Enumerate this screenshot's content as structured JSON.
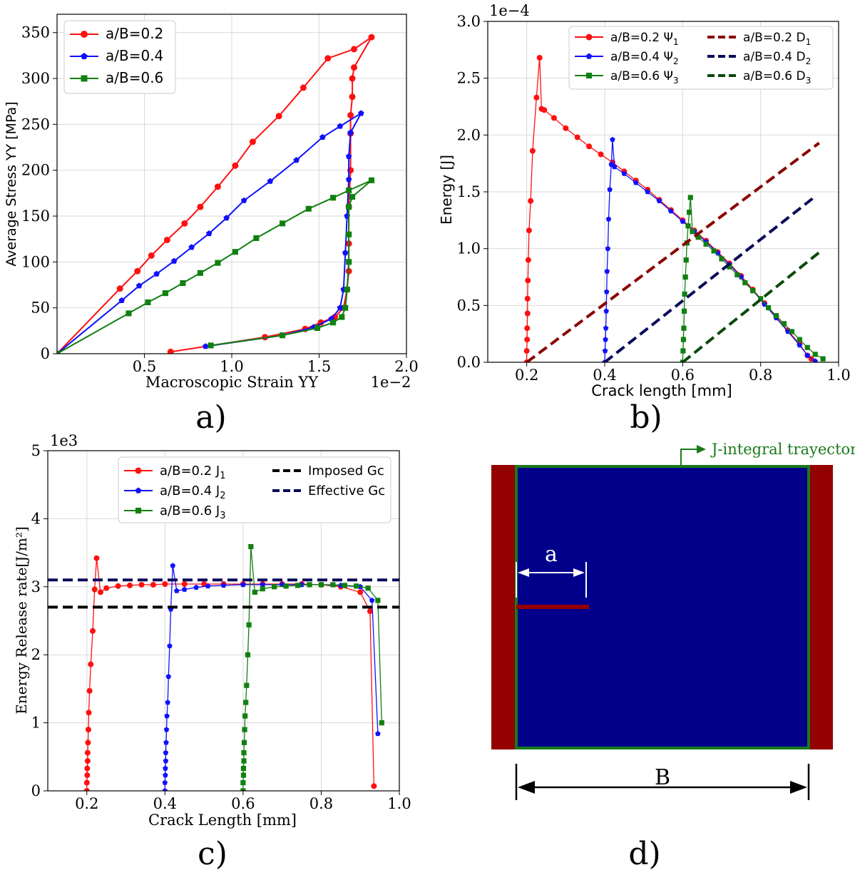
{
  "colors": {
    "red": "#ff1010",
    "blue": "#1010ff",
    "green": "#108010",
    "darkred": "#8b0000",
    "navy": "#0a0a5a",
    "darkgreen": "#0a4a0a",
    "black": "#000000",
    "panel_blue": "#00008b",
    "panel_red": "#950000",
    "traj_green": "#1a7a1a"
  },
  "chart_data": [
    {
      "id": "a",
      "type": "line",
      "panel_label": "a)",
      "xlabel": "Macroscopic Strain YY",
      "ylabel": "Average Stress YY [MPa]",
      "x_exponent": "1e−2",
      "xlim": [
        0.0,
        2.0
      ],
      "ylim": [
        0,
        370
      ],
      "xticks": [
        0.5,
        1.0,
        1.5,
        2.0
      ],
      "xtick_labels": [
        "0.5",
        "1.0",
        "1.5",
        "2.0"
      ],
      "yticks": [
        0,
        50,
        100,
        150,
        200,
        250,
        300,
        350
      ],
      "ytick_labels": [
        "0",
        "50",
        "100",
        "150",
        "200",
        "250",
        "300",
        "350"
      ],
      "legend_position": "top-left",
      "series": [
        {
          "name": "a/B=0.2",
          "color": "red",
          "marker": "circle",
          "x": [
            0.0,
            0.36,
            0.46,
            0.54,
            0.63,
            0.73,
            0.82,
            0.92,
            1.02,
            1.12,
            1.27,
            1.41,
            1.55,
            1.7,
            1.8,
            1.7,
            1.69,
            1.69,
            1.68,
            1.68,
            1.68,
            1.67,
            1.67,
            1.67,
            1.66,
            1.64,
            1.59,
            1.51,
            1.42,
            1.19,
            0.65
          ],
          "y": [
            0,
            71,
            90,
            107,
            124,
            142,
            160,
            182,
            205,
            231,
            259,
            290,
            322,
            332,
            345,
            312,
            300,
            280,
            260,
            240,
            200,
            160,
            120,
            90,
            70,
            50,
            40,
            34,
            27,
            18,
            2
          ]
        },
        {
          "name": "a/B=0.4",
          "color": "blue",
          "marker": "pentagon",
          "x": [
            0.0,
            0.37,
            0.47,
            0.57,
            0.67,
            0.77,
            0.87,
            0.97,
            1.07,
            1.22,
            1.37,
            1.52,
            1.62,
            1.74,
            1.68,
            1.67,
            1.67,
            1.66,
            1.65,
            1.64,
            1.62,
            1.57,
            1.47,
            1.29,
            0.85
          ],
          "y": [
            0,
            58,
            74,
            87,
            101,
            116,
            131,
            148,
            167,
            188,
            211,
            236,
            248,
            262,
            241,
            215,
            190,
            150,
            110,
            70,
            50,
            38,
            29,
            20,
            8
          ]
        },
        {
          "name": "a/B=0.6",
          "color": "green",
          "marker": "square",
          "x": [
            0.0,
            0.41,
            0.52,
            0.62,
            0.72,
            0.82,
            0.92,
            1.02,
            1.14,
            1.29,
            1.44,
            1.58,
            1.67,
            1.8,
            1.69,
            1.67,
            1.67,
            1.67,
            1.66,
            1.65,
            1.63,
            1.58,
            1.49,
            1.29,
            0.88
          ],
          "y": [
            0,
            44,
            56,
            66,
            77,
            88,
            99,
            111,
            126,
            142,
            158,
            170,
            178,
            189,
            171,
            160,
            130,
            100,
            70,
            50,
            40,
            34,
            28,
            20,
            9
          ]
        }
      ]
    },
    {
      "id": "b",
      "type": "line",
      "panel_label": "b)",
      "xlabel": "Crack length [mm]",
      "ylabel": "Energy [J]",
      "y_exponent": "1e−4",
      "xlim": [
        0.1,
        1.0
      ],
      "ylim": [
        0.0,
        3.0
      ],
      "xticks": [
        0.2,
        0.4,
        0.6,
        0.8,
        1.0
      ],
      "xtick_labels": [
        "0.2",
        "0.4",
        "0.6",
        "0.8",
        "1.0"
      ],
      "yticks": [
        0.0,
        0.5,
        1.0,
        1.5,
        2.0,
        2.5,
        3.0
      ],
      "ytick_labels": [
        "0.0",
        "0.5",
        "1.0",
        "1.5",
        "2.0",
        "2.5",
        "3.0"
      ],
      "legend_position": "top-right",
      "series": [
        {
          "name": "a/B=0.2 Ψ",
          "sub": "1",
          "color": "red",
          "marker": "circle",
          "style": "solid",
          "x": [
            0.2,
            0.2,
            0.201,
            0.201,
            0.202,
            0.202,
            0.203,
            0.204,
            0.206,
            0.21,
            0.215,
            0.225,
            0.233,
            0.238,
            0.245,
            0.27,
            0.3,
            0.33,
            0.36,
            0.39,
            0.42,
            0.45,
            0.48,
            0.51,
            0.54,
            0.57,
            0.6,
            0.63,
            0.66,
            0.69,
            0.72,
            0.75,
            0.78,
            0.81,
            0.84,
            0.87,
            0.9,
            0.92,
            0.93
          ],
          "y": [
            0.0,
            0.1,
            0.2,
            0.3,
            0.43,
            0.56,
            0.72,
            0.9,
            1.16,
            1.42,
            1.86,
            2.33,
            2.68,
            2.23,
            2.22,
            2.15,
            2.06,
            1.98,
            1.9,
            1.83,
            1.76,
            1.68,
            1.6,
            1.52,
            1.43,
            1.34,
            1.25,
            1.16,
            1.07,
            0.97,
            0.87,
            0.76,
            0.64,
            0.52,
            0.4,
            0.28,
            0.16,
            0.06,
            0.03
          ]
        },
        {
          "name": "a/B=0.4 Ψ",
          "sub": "2",
          "color": "blue",
          "marker": "pentagon",
          "style": "solid",
          "x": [
            0.4,
            0.401,
            0.402,
            0.403,
            0.404,
            0.405,
            0.406,
            0.408,
            0.41,
            0.413,
            0.417,
            0.42,
            0.425,
            0.45,
            0.48,
            0.51,
            0.54,
            0.57,
            0.6,
            0.63,
            0.66,
            0.69,
            0.72,
            0.75,
            0.78,
            0.81,
            0.84,
            0.87,
            0.9,
            0.92,
            0.94
          ],
          "y": [
            0.0,
            0.1,
            0.2,
            0.3,
            0.45,
            0.62,
            0.8,
            1.0,
            1.26,
            1.52,
            1.74,
            1.96,
            1.72,
            1.66,
            1.58,
            1.5,
            1.42,
            1.33,
            1.24,
            1.15,
            1.06,
            0.96,
            0.86,
            0.75,
            0.63,
            0.51,
            0.39,
            0.27,
            0.15,
            0.06,
            0.01
          ]
        },
        {
          "name": "a/B=0.6 Ψ",
          "sub": "3",
          "color": "green",
          "marker": "square",
          "style": "solid",
          "x": [
            0.6,
            0.601,
            0.602,
            0.603,
            0.604,
            0.605,
            0.607,
            0.609,
            0.611,
            0.614,
            0.617,
            0.62,
            0.625,
            0.64,
            0.66,
            0.68,
            0.7,
            0.72,
            0.74,
            0.76,
            0.78,
            0.8,
            0.82,
            0.84,
            0.86,
            0.88,
            0.9,
            0.92,
            0.94,
            0.96
          ],
          "y": [
            0.0,
            0.1,
            0.2,
            0.3,
            0.45,
            0.6,
            0.75,
            0.9,
            1.05,
            1.2,
            1.32,
            1.45,
            1.15,
            1.1,
            1.04,
            0.98,
            0.91,
            0.84,
            0.77,
            0.7,
            0.63,
            0.56,
            0.48,
            0.41,
            0.34,
            0.27,
            0.2,
            0.13,
            0.07,
            0.03
          ]
        },
        {
          "name": "a/B=0.2 D",
          "sub": "1",
          "color": "darkred",
          "style": "dashed",
          "x": [
            0.2,
            0.95
          ],
          "y": [
            0.0,
            1.93
          ]
        },
        {
          "name": "a/B=0.4 D",
          "sub": "2",
          "color": "navy",
          "style": "dashed",
          "x": [
            0.4,
            0.94
          ],
          "y": [
            0.0,
            1.46
          ]
        },
        {
          "name": "a/B=0.6 D",
          "sub": "3",
          "color": "darkgreen",
          "style": "dashed",
          "x": [
            0.6,
            0.955
          ],
          "y": [
            0.0,
            0.98
          ]
        }
      ]
    },
    {
      "id": "c",
      "type": "line",
      "panel_label": "c)",
      "xlabel": "Crack Length [mm]",
      "ylabel": "Energy Release rate[J/m²]",
      "y_exponent": "1e3",
      "xlim": [
        0.1,
        1.0
      ],
      "ylim": [
        0.0,
        5.0
      ],
      "xticks": [
        0.2,
        0.4,
        0.6,
        0.8,
        1.0
      ],
      "xtick_labels": [
        "0.2",
        "0.4",
        "0.6",
        "0.8",
        "1.0"
      ],
      "yticks": [
        0,
        1,
        2,
        3,
        4,
        5
      ],
      "ytick_labels": [
        "0",
        "1",
        "2",
        "3",
        "4",
        "5"
      ],
      "legend_position": "top-right",
      "series": [
        {
          "name": "a/B=0.2 J",
          "sub": "1",
          "color": "red",
          "marker": "circle",
          "style": "solid",
          "x": [
            0.2,
            0.2,
            0.201,
            0.201,
            0.202,
            0.202,
            0.203,
            0.204,
            0.205,
            0.207,
            0.21,
            0.215,
            0.22,
            0.225,
            0.235,
            0.25,
            0.28,
            0.31,
            0.34,
            0.37,
            0.4,
            0.45,
            0.5,
            0.55,
            0.6,
            0.65,
            0.7,
            0.75,
            0.8,
            0.85,
            0.9,
            0.925,
            0.935
          ],
          "y": [
            0.0,
            0.12,
            0.23,
            0.33,
            0.44,
            0.56,
            0.71,
            0.9,
            1.15,
            1.47,
            1.86,
            2.35,
            2.96,
            3.42,
            2.92,
            2.98,
            3.01,
            3.02,
            3.03,
            3.03,
            3.04,
            3.04,
            3.04,
            3.04,
            3.04,
            3.04,
            3.04,
            3.04,
            3.03,
            3.0,
            2.92,
            2.64,
            0.07
          ]
        },
        {
          "name": "a/B=0.4 J",
          "sub": "2",
          "color": "blue",
          "marker": "pentagon",
          "style": "solid",
          "x": [
            0.4,
            0.4,
            0.401,
            0.401,
            0.402,
            0.402,
            0.403,
            0.404,
            0.405,
            0.407,
            0.409,
            0.412,
            0.415,
            0.42,
            0.43,
            0.45,
            0.48,
            0.51,
            0.55,
            0.6,
            0.65,
            0.7,
            0.75,
            0.8,
            0.85,
            0.9,
            0.93,
            0.945
          ],
          "y": [
            0.0,
            0.12,
            0.23,
            0.33,
            0.44,
            0.56,
            0.71,
            0.9,
            1.1,
            1.3,
            1.68,
            2.13,
            2.67,
            3.31,
            2.94,
            2.96,
            2.99,
            3.01,
            3.02,
            3.03,
            3.03,
            3.03,
            3.03,
            3.03,
            3.02,
            3.0,
            2.8,
            0.84
          ]
        },
        {
          "name": "a/B=0.6 J",
          "sub": "3",
          "color": "green",
          "marker": "square",
          "style": "solid",
          "x": [
            0.6,
            0.6,
            0.601,
            0.601,
            0.602,
            0.602,
            0.603,
            0.604,
            0.605,
            0.607,
            0.609,
            0.612,
            0.615,
            0.62,
            0.63,
            0.65,
            0.68,
            0.71,
            0.74,
            0.77,
            0.8,
            0.83,
            0.86,
            0.89,
            0.92,
            0.945,
            0.955
          ],
          "y": [
            0.0,
            0.12,
            0.23,
            0.33,
            0.44,
            0.56,
            0.71,
            0.9,
            1.1,
            1.3,
            1.55,
            2.0,
            2.44,
            3.59,
            2.92,
            2.97,
            3.0,
            3.01,
            3.02,
            3.03,
            3.03,
            3.03,
            3.02,
            3.01,
            2.98,
            2.8,
            1.0
          ]
        },
        {
          "name": "Imposed Gc",
          "color": "black",
          "style": "dashed",
          "x": [
            0.1,
            1.0
          ],
          "y": [
            2.7,
            2.7
          ]
        },
        {
          "name": "Effective Gc",
          "color": "navy",
          "style": "dashed",
          "x": [
            0.1,
            1.0
          ],
          "y": [
            3.1,
            3.1
          ]
        }
      ]
    }
  ],
  "diagram_d": {
    "panel_label": "d)",
    "trajectory_label": "J-integral trayectory",
    "crack_label": "a",
    "width_label": "B"
  }
}
